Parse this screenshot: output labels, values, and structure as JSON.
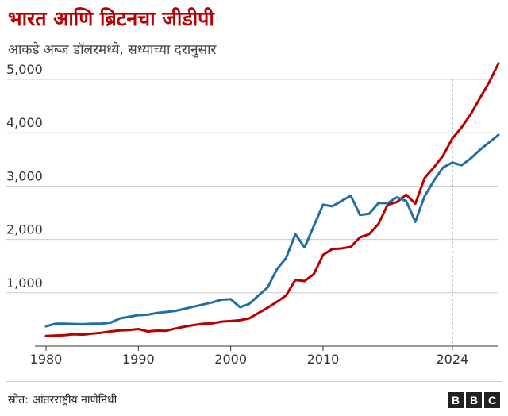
{
  "title": "भारत आणि ब्रिटनचा जीडीपी",
  "subtitle": "आकडे अब्ज डॉलरमध्ये, सध्याच्या दरानुसार",
  "source": "स्रोत: आंतरराष्ट्रीय नाणेनिधी",
  "logo": [
    "B",
    "B",
    "C"
  ],
  "colors": {
    "india": "#b80000",
    "uk": "#1f6ea6",
    "grid": "#cccccc",
    "text": "#222222"
  },
  "chart_data": {
    "type": "line",
    "title": "भारत आणि ब्रिटनचा जीडीपी",
    "subtitle": "आकडे अब्ज डॉलरमध्ये, सध्याच्या दरानुसार",
    "xlabel": "",
    "ylabel": "",
    "ylim": [
      0,
      5000
    ],
    "xlim": [
      1980,
      2029
    ],
    "yticks": [
      1000,
      2000,
      3000,
      4000,
      5000
    ],
    "ytick_labels": [
      "1,000",
      "2,000",
      "3,000",
      "4,000",
      "5,000"
    ],
    "xticks": [
      1980,
      1990,
      2000,
      2010,
      2024
    ],
    "grid": true,
    "legend": "none",
    "annotations": [
      {
        "type": "vertical-dashed-line",
        "x": 2024
      }
    ],
    "x": [
      1980,
      1981,
      1982,
      1983,
      1984,
      1985,
      1986,
      1987,
      1988,
      1989,
      1990,
      1991,
      1992,
      1993,
      1994,
      1995,
      1996,
      1997,
      1998,
      1999,
      2000,
      2001,
      2002,
      2003,
      2004,
      2005,
      2006,
      2007,
      2008,
      2009,
      2010,
      2011,
      2012,
      2013,
      2014,
      2015,
      2016,
      2017,
      2018,
      2019,
      2020,
      2021,
      2022,
      2023,
      2024,
      2025,
      2026,
      2027,
      2028,
      2029
    ],
    "series": [
      {
        "key": "india",
        "values": [
          190,
          196,
          205,
          222,
          215,
          235,
          250,
          275,
          295,
          300,
          320,
          275,
          290,
          285,
          330,
          365,
          395,
          420,
          425,
          460,
          470,
          485,
          520,
          620,
          720,
          830,
          950,
          1240,
          1220,
          1350,
          1710,
          1820,
          1830,
          1860,
          2040,
          2100,
          2290,
          2650,
          2700,
          2840,
          2670,
          3150,
          3350,
          3570,
          3890,
          4100,
          4350,
          4650,
          4950,
          5300
        ]
      },
      {
        "key": "uk",
        "values": [
          370,
          420,
          420,
          415,
          410,
          420,
          420,
          440,
          520,
          550,
          580,
          590,
          620,
          640,
          660,
          700,
          740,
          780,
          820,
          870,
          880,
          730,
          790,
          950,
          1100,
          1440,
          1650,
          2100,
          1850,
          2250,
          2650,
          2620,
          2720,
          2820,
          2460,
          2480,
          2680,
          2680,
          2790,
          2720,
          2330,
          2810,
          3100,
          3350,
          3440,
          3390,
          3520,
          3680,
          3820,
          3960
        ]
      }
    ]
  }
}
